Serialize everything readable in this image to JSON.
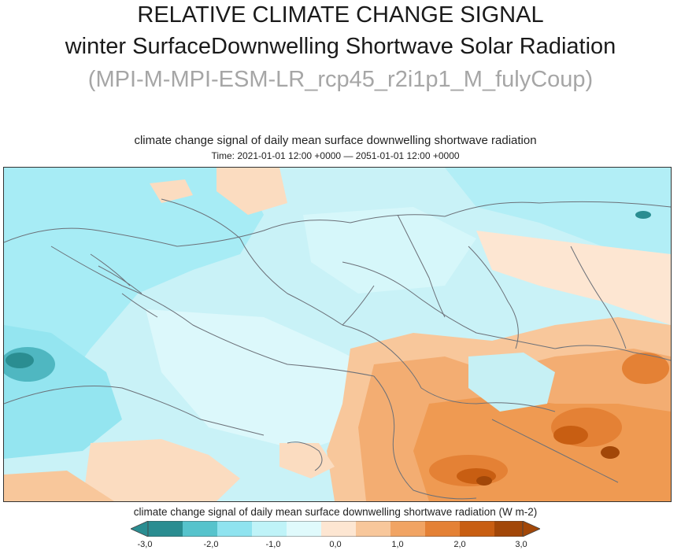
{
  "header": {
    "line1": "RELATIVE CLIMATE CHANGE SIGNAL",
    "line2": "winter SurfaceDownwelling Shortwave Solar Radiation",
    "line3": "(MPI-M-MPI-ESM-LR_rcp45_r2i1p1_M_fulyCoup)"
  },
  "map": {
    "title": "climate change signal of daily mean surface downwelling shortwave radiation",
    "subtitle": "Time: 2021-01-01 12:00 +0000 — 2051-01-01 12:00 +0000"
  },
  "colorbar": {
    "label": "climate change signal of daily mean surface downwelling shortwave radiation (W m-2)",
    "ticks": [
      "-3,0",
      "-2,0",
      "-1,0",
      "0,0",
      "1,0",
      "2,0",
      "3,0"
    ],
    "colors": [
      "#2a8d91",
      "#56c3cc",
      "#8fe3ef",
      "#bff3f8",
      "#e0fafc",
      "#fde6d2",
      "#f8c79b",
      "#f1a463",
      "#e48135",
      "#c85e12",
      "#a24708"
    ]
  }
}
